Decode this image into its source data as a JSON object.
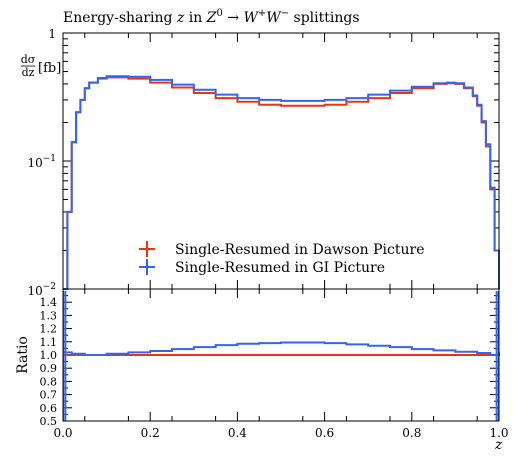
{
  "colors": {
    "dawson": "#ee3311",
    "gi": "#3366ee",
    "axis": "#000000"
  },
  "chart_data": [
    {
      "type": "line",
      "panel": "main",
      "title_parts": {
        "pre": "Energy-sharing ",
        "z": "z",
        "mid": " in ",
        "Z": "Z",
        "Zsup": "0",
        "arrow": " → ",
        "W1": "W",
        "W1sup": "+",
        "W2": "W",
        "W2sup": "−",
        "post": " splittings"
      },
      "ylabel": {
        "num": "dσ",
        "den": "dz",
        "unit": "[fb]"
      },
      "yscale": "log",
      "ylim": [
        0.01,
        1
      ],
      "xlim": [
        0,
        1
      ],
      "ytick_labels": [
        {
          "value": 1,
          "label": "1"
        },
        {
          "value": 0.1,
          "base": "10",
          "exp": "−1"
        },
        {
          "value": 0.01,
          "base": "10",
          "exp": "−2"
        }
      ],
      "legend_position": "lower-center",
      "series": [
        {
          "name": "Single-Resumed in Dawson Picture",
          "color_key": "dawson",
          "x": [
            0.0,
            0.01,
            0.02,
            0.03,
            0.04,
            0.05,
            0.06,
            0.08,
            0.1,
            0.12,
            0.15,
            0.2,
            0.25,
            0.3,
            0.35,
            0.4,
            0.45,
            0.5,
            0.55,
            0.6,
            0.65,
            0.7,
            0.75,
            0.8,
            0.85,
            0.88,
            0.9,
            0.92,
            0.94,
            0.95,
            0.96,
            0.97,
            0.98,
            0.99,
            1.0
          ],
          "y": [
            0.01,
            0.04,
            0.14,
            0.24,
            0.3,
            0.37,
            0.41,
            0.44,
            0.45,
            0.45,
            0.44,
            0.41,
            0.375,
            0.34,
            0.31,
            0.29,
            0.275,
            0.27,
            0.27,
            0.275,
            0.29,
            0.31,
            0.34,
            0.37,
            0.4,
            0.405,
            0.4,
            0.37,
            0.32,
            0.27,
            0.2,
            0.13,
            0.06,
            0.02,
            0.01
          ]
        },
        {
          "name": "Single-Resumed in GI Picture",
          "color_key": "gi",
          "x": [
            0.0,
            0.01,
            0.02,
            0.03,
            0.04,
            0.05,
            0.06,
            0.08,
            0.1,
            0.12,
            0.15,
            0.2,
            0.25,
            0.3,
            0.35,
            0.4,
            0.45,
            0.5,
            0.55,
            0.6,
            0.65,
            0.7,
            0.75,
            0.8,
            0.85,
            0.88,
            0.9,
            0.92,
            0.94,
            0.95,
            0.96,
            0.97,
            0.98,
            0.99,
            1.0
          ],
          "y": [
            0.01,
            0.04,
            0.14,
            0.24,
            0.3,
            0.37,
            0.41,
            0.445,
            0.46,
            0.46,
            0.455,
            0.43,
            0.395,
            0.36,
            0.33,
            0.31,
            0.3,
            0.295,
            0.295,
            0.3,
            0.31,
            0.33,
            0.355,
            0.38,
            0.405,
            0.41,
            0.405,
            0.375,
            0.325,
            0.275,
            0.205,
            0.135,
            0.062,
            0.02,
            0.01
          ]
        }
      ]
    },
    {
      "type": "line",
      "panel": "ratio",
      "ylabel": "Ratio",
      "xlabel": "z",
      "xlim": [
        0,
        1
      ],
      "ylim": [
        0.5,
        1.5
      ],
      "xtick_labels": [
        "0.0",
        "0.2",
        "0.4",
        "0.6",
        "0.8",
        "1.0"
      ],
      "xtick_values": [
        0,
        0.2,
        0.4,
        0.6,
        0.8,
        1.0
      ],
      "ytick_labels": [
        "0.5",
        "0.6",
        "0.7",
        "0.8",
        "0.9",
        "1.0",
        "1.1",
        "1.2",
        "1.3",
        "1.4"
      ],
      "ytick_values": [
        0.5,
        0.6,
        0.7,
        0.8,
        0.9,
        1.0,
        1.1,
        1.2,
        1.3,
        1.4
      ],
      "series": [
        {
          "name": "Single-Resumed in Dawson Picture",
          "color_key": "dawson",
          "x": [
            0.0,
            1.0
          ],
          "y": [
            1.0,
            1.0
          ]
        },
        {
          "name": "Single-Resumed in GI Picture",
          "color_key": "gi",
          "x": [
            0.0,
            0.02,
            0.05,
            0.1,
            0.15,
            0.2,
            0.25,
            0.3,
            0.35,
            0.4,
            0.45,
            0.5,
            0.55,
            0.6,
            0.65,
            0.7,
            0.75,
            0.8,
            0.85,
            0.9,
            0.95,
            0.98,
            1.0
          ],
          "y": [
            1.02,
            1.01,
            1.0,
            1.01,
            1.02,
            1.03,
            1.045,
            1.06,
            1.075,
            1.085,
            1.09,
            1.095,
            1.095,
            1.09,
            1.08,
            1.07,
            1.06,
            1.045,
            1.035,
            1.025,
            1.015,
            1.0,
            1.02
          ]
        }
      ]
    }
  ]
}
